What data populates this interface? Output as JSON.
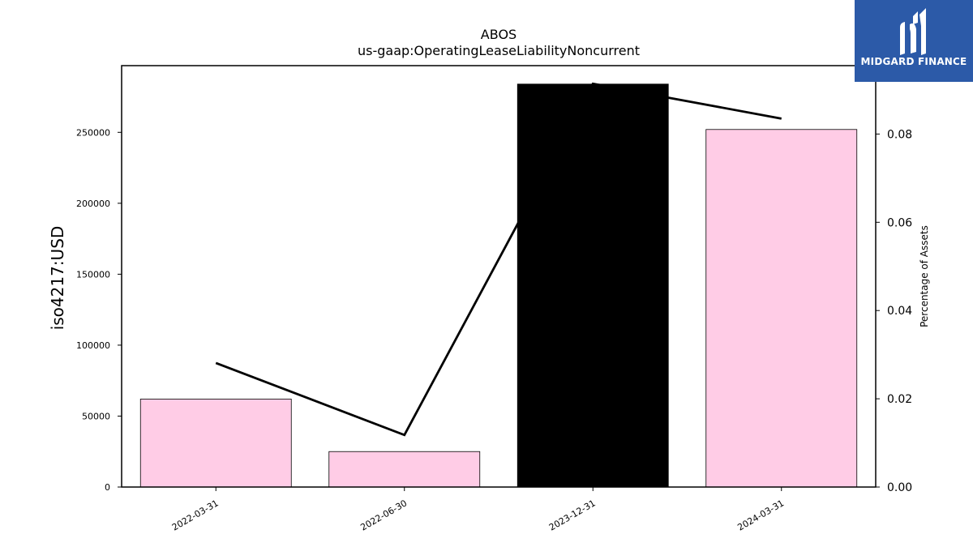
{
  "brand": {
    "name": "MIDGARD FINANCE",
    "bg_color": "#2c5aa8"
  },
  "chart_data": {
    "type": "bar",
    "title": "ABOS",
    "subtitle": "us-gaap:OperatingLeaseLiabilityNoncurrent",
    "categories": [
      "2022-03-31",
      "2022-06-30",
      "2023-12-31",
      "2024-03-31"
    ],
    "series": [
      {
        "type": "bar",
        "axis": "left",
        "values": [
          62000,
          25000,
          284000,
          252000
        ],
        "colors": [
          "#ffcce6",
          "#ffcce6",
          "#000000",
          "#ffcce6"
        ]
      },
      {
        "type": "line",
        "axis": "right",
        "values": [
          0.0281,
          0.0118,
          0.0914,
          0.0835
        ],
        "color": "#000000"
      }
    ],
    "ylabel": "iso4217:USD",
    "ylim": [
      0,
      297000
    ],
    "yticks": [
      0,
      50000,
      100000,
      150000,
      200000,
      250000
    ],
    "ytick_labels": [
      "0",
      "50000",
      "100000",
      "150000",
      "200000",
      "250000"
    ],
    "y2label": "Percentage of Assets",
    "y2lim": [
      0,
      0.0955
    ],
    "y2ticks": [
      0,
      0.02,
      0.04,
      0.06,
      0.08
    ],
    "y2tick_labels": [
      "0.00",
      "0.02",
      "0.04",
      "0.06",
      "0.08"
    ],
    "grid": false,
    "legend": "none"
  }
}
